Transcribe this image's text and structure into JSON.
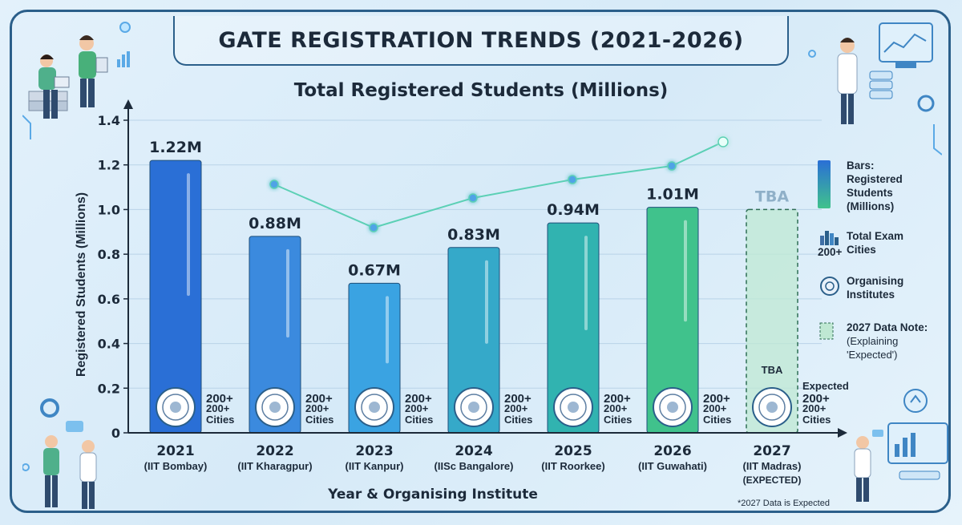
{
  "title": "GATE REGISTRATION TRENDS (2021-2026)",
  "chart_data": {
    "type": "bar",
    "title": "Total Registered Students (Millions)",
    "xlabel": "Year & Organising Institute",
    "ylabel": "Registered Students (Millions)",
    "ylim": [
      0,
      1.4
    ],
    "yticks": [
      "0",
      "0.2",
      "0.4",
      "0.6",
      "0.8",
      "1.0",
      "1.2",
      "1.4"
    ],
    "grid": true,
    "legend_position": "right",
    "categories": [
      {
        "year": "2021",
        "institute": "(IIT Bombay)",
        "value": 1.22,
        "label": "1.22M",
        "cities": [
          "200+",
          "200+",
          "Cities"
        ],
        "color": "#2a6fd6"
      },
      {
        "year": "2022",
        "institute": "(IIT Kharagpur)",
        "value": 0.88,
        "label": "0.88M",
        "cities": [
          "200+",
          "200+",
          "Cities"
        ],
        "color": "#3b8ade"
      },
      {
        "year": "2023",
        "institute": "(IIT Kanpur)",
        "value": 0.67,
        "label": "0.67M",
        "cities": [
          "200+",
          "200+",
          "Cities"
        ],
        "color": "#3aa3e2"
      },
      {
        "year": "2024",
        "institute": "(IISc Bangalore)",
        "value": 0.83,
        "label": "0.83M",
        "cities": [
          "200+",
          "200+",
          "Cities"
        ],
        "color": "#35a9c9"
      },
      {
        "year": "2025",
        "institute": "(IIT Roorkee)",
        "value": 0.94,
        "label": "0.94M",
        "cities": [
          "200+",
          "200+",
          "Cities"
        ],
        "color": "#31b3b0"
      },
      {
        "year": "2026",
        "institute": "(IIT Guwahati)",
        "value": 1.01,
        "label": "1.01M",
        "cities": [
          "200+",
          "200+",
          "Cities"
        ],
        "color": "#40c28c"
      },
      {
        "year": "2027",
        "institute": "(IIT Madras)",
        "institute2": "(EXPECTED)",
        "value": null,
        "label": "TBA",
        "inner_label": "TBA",
        "cities": [
          "Expected",
          "200+",
          "200+",
          "Cities"
        ],
        "color": "#bfe8d3"
      }
    ],
    "trend_line": {
      "color": "#5cd0b5"
    }
  },
  "legend": {
    "bars": "Bars: Registered Students (Millions)",
    "cities_label": "Total Exam Cities",
    "cities_count": "200+",
    "institutes": "Organising Institutes",
    "note_title": "2027 Data Note:",
    "note_body": "(Explaining 'Expected')"
  },
  "footnote": "*2027 Data is Expected",
  "colors": {
    "frame": "#2b5f8a",
    "text": "#1c2a3a",
    "axis": "#1c2a3a"
  },
  "icons": [
    "university-seal-icon",
    "city-skyline-icon",
    "gear-icon",
    "person-illustration",
    "monitor-icon"
  ]
}
